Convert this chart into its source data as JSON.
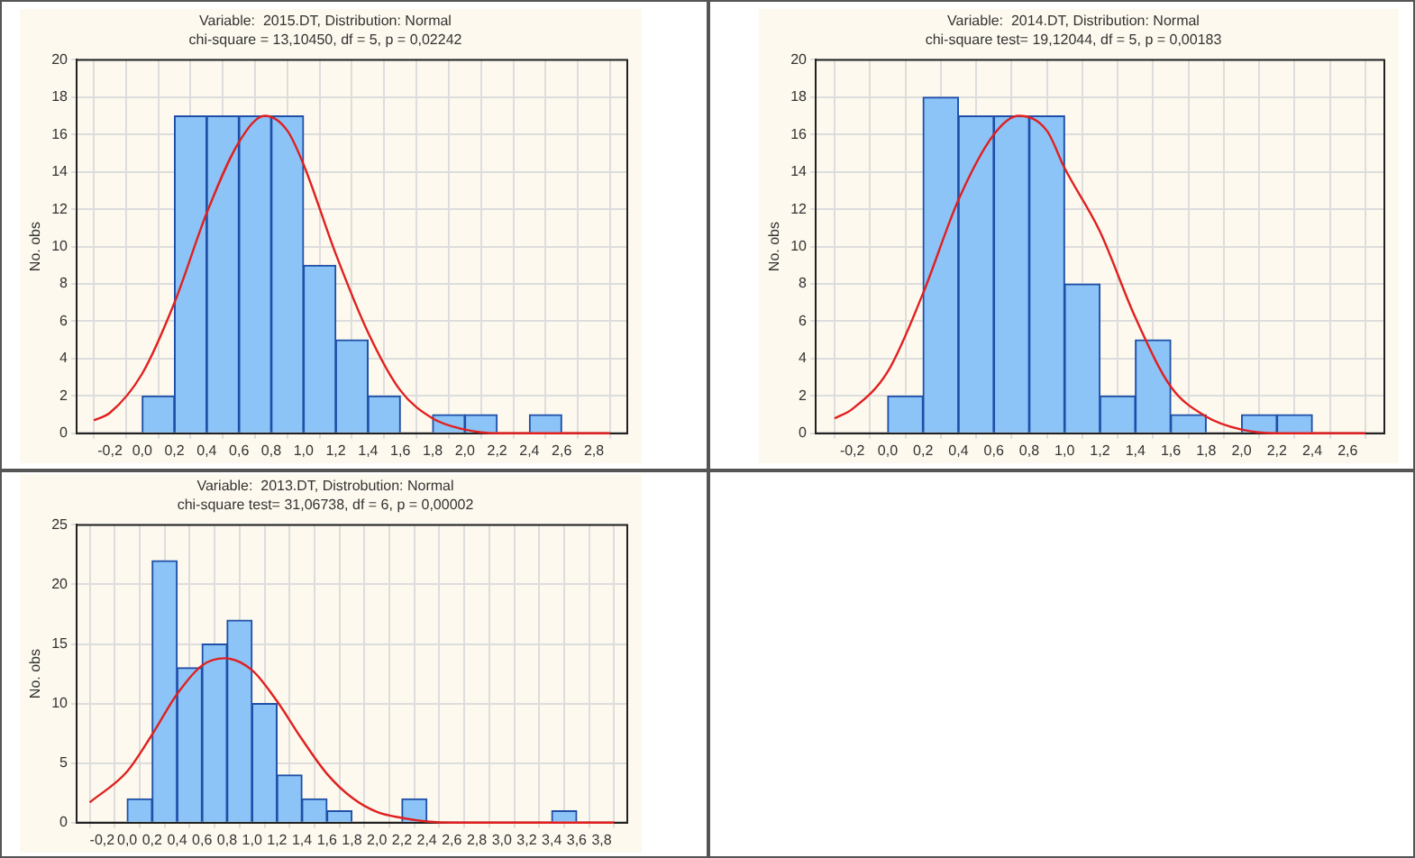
{
  "chart_data": [
    {
      "type": "histogram",
      "title": "Variable:  2015.DT, Distribution: Normal",
      "subtitle": "chi-square = 13,10450, df = 5, p = 0,02242",
      "ylabel": "No. obs",
      "bins": [
        0,
        0.2,
        0.4,
        0.6,
        0.8,
        1.0,
        1.2,
        1.4,
        1.6,
        1.8,
        2.0,
        2.2,
        2.4,
        2.6
      ],
      "values": [
        2,
        17,
        17,
        17,
        17,
        9,
        5,
        2,
        0,
        1,
        1,
        0,
        1
      ],
      "color": "#8cc4f7",
      "series": [
        {
          "type": "line",
          "color": "#e02020",
          "x": [
            -0.3,
            -0.2,
            0,
            0.2,
            0.4,
            0.6,
            0.76,
            0.9,
            1.0,
            1.2,
            1.4,
            1.6,
            1.8,
            2.0,
            2.2,
            2.4,
            2.9
          ],
          "values": [
            0.7,
            1.1,
            3.2,
            7,
            11.8,
            15.6,
            17,
            16.2,
            14.4,
            9.6,
            5.4,
            2.3,
            0.8,
            0.2,
            0,
            0,
            0
          ]
        }
      ],
      "xlim": [
        -0.3,
        2.9
      ],
      "xticks": [
        {
          "value": -0.2,
          "label": "-0,2"
        },
        {
          "value": 0,
          "label": "0,0"
        },
        {
          "value": 0.2,
          "label": "0,2"
        },
        {
          "value": 0.4,
          "label": "0,4"
        },
        {
          "value": 0.6,
          "label": "0,6"
        },
        {
          "value": 0.8,
          "label": "0,8"
        },
        {
          "value": 1.0,
          "label": "1,0"
        },
        {
          "value": 1.2,
          "label": "1,2"
        },
        {
          "value": 1.4,
          "label": "1,4"
        },
        {
          "value": 1.6,
          "label": "1,6"
        },
        {
          "value": 1.8,
          "label": "1,8"
        },
        {
          "value": 2.0,
          "label": "2,0"
        },
        {
          "value": 2.2,
          "label": "2,2"
        },
        {
          "value": 2.4,
          "label": "2,4"
        },
        {
          "value": 2.6,
          "label": "2,6"
        },
        {
          "value": 2.8,
          "label": "2,8"
        }
      ],
      "ylim": [
        0,
        20
      ],
      "yticks": [
        0,
        2,
        4,
        6,
        8,
        10,
        12,
        14,
        16,
        18,
        20
      ],
      "grid": true
    },
    {
      "type": "histogram",
      "title": "Variable:  2014.DT, Distribution: Normal",
      "subtitle": "chi-square test= 19,12044, df = 5, p = 0,00183",
      "ylabel": "No. obs",
      "bins": [
        0,
        0.2,
        0.4,
        0.6,
        0.8,
        1.0,
        1.2,
        1.4,
        1.6,
        1.8,
        2.0,
        2.2,
        2.4
      ],
      "values": [
        2,
        18,
        17,
        17,
        17,
        8,
        2,
        5,
        1,
        0,
        1,
        1
      ],
      "color": "#8cc4f7",
      "series": [
        {
          "type": "line",
          "color": "#e02020",
          "x": [
            -0.3,
            -0.2,
            0,
            0.2,
            0.4,
            0.6,
            0.74,
            0.9,
            1.0,
            1.2,
            1.4,
            1.6,
            1.8,
            2.0,
            2.2,
            2.4,
            2.7
          ],
          "values": [
            0.8,
            1.3,
            3.3,
            7.5,
            12.5,
            16,
            17,
            16.2,
            14.2,
            10.8,
            6.2,
            2.5,
            0.9,
            0.2,
            0,
            0,
            0
          ]
        }
      ],
      "xlim": [
        -0.3,
        2.7
      ],
      "xticks": [
        {
          "value": -0.2,
          "label": "-0,2"
        },
        {
          "value": 0,
          "label": "0,0"
        },
        {
          "value": 0.2,
          "label": "0,2"
        },
        {
          "value": 0.4,
          "label": "0,4"
        },
        {
          "value": 0.6,
          "label": "0,6"
        },
        {
          "value": 0.8,
          "label": "0,8"
        },
        {
          "value": 1.0,
          "label": "1,0"
        },
        {
          "value": 1.2,
          "label": "1,2"
        },
        {
          "value": 1.4,
          "label": "1,4"
        },
        {
          "value": 1.6,
          "label": "1,6"
        },
        {
          "value": 1.8,
          "label": "1,8"
        },
        {
          "value": 2.0,
          "label": "2,0"
        },
        {
          "value": 2.2,
          "label": "2,2"
        },
        {
          "value": 2.4,
          "label": "2,4"
        },
        {
          "value": 2.6,
          "label": "2,6"
        }
      ],
      "ylim": [
        0,
        20
      ],
      "yticks": [
        0,
        2,
        4,
        6,
        8,
        10,
        12,
        14,
        16,
        18,
        20
      ],
      "grid": true
    },
    {
      "type": "histogram",
      "title": "Variable:  2013.DT, Distrobution: Normal",
      "subtitle": "chi-square test= 31,06738, df = 6, p = 0,00002",
      "ylabel": "No. obs",
      "bins": [
        0,
        0.2,
        0.4,
        0.6,
        0.8,
        1.0,
        1.2,
        1.4,
        1.6,
        1.8,
        2.0,
        2.2,
        2.4,
        2.6,
        2.8,
        3.0,
        3.2,
        3.4,
        3.6
      ],
      "values": [
        2,
        22,
        13,
        15,
        17,
        10,
        4,
        2,
        1,
        0,
        0,
        2,
        0,
        0,
        0,
        0,
        0,
        1
      ],
      "color": "#8cc4f7",
      "series": [
        {
          "type": "line",
          "color": "#e02020",
          "x": [
            -0.3,
            0,
            0.2,
            0.4,
            0.6,
            0.78,
            1.0,
            1.2,
            1.4,
            1.6,
            1.8,
            2.0,
            2.2,
            2.4,
            2.6,
            3.9
          ],
          "values": [
            1.7,
            4.3,
            7.4,
            10.8,
            13.2,
            13.8,
            12.8,
            10.2,
            7,
            4.1,
            2.1,
            0.9,
            0.4,
            0.1,
            0,
            0
          ]
        }
      ],
      "xlim": [
        -0.3,
        3.9
      ],
      "xticks": [
        {
          "value": -0.2,
          "label": "-0,2"
        },
        {
          "value": 0,
          "label": "0,0"
        },
        {
          "value": 0.2,
          "label": "0,2"
        },
        {
          "value": 0.4,
          "label": "0,4"
        },
        {
          "value": 0.6,
          "label": "0,6"
        },
        {
          "value": 0.8,
          "label": "0,8"
        },
        {
          "value": 1.0,
          "label": "1,0"
        },
        {
          "value": 1.2,
          "label": "1,2"
        },
        {
          "value": 1.4,
          "label": "1,4"
        },
        {
          "value": 1.6,
          "label": "1,6"
        },
        {
          "value": 1.8,
          "label": "1,8"
        },
        {
          "value": 2.0,
          "label": "2,0"
        },
        {
          "value": 2.2,
          "label": "2,2"
        },
        {
          "value": 2.4,
          "label": "2,4"
        },
        {
          "value": 2.6,
          "label": "2,6"
        },
        {
          "value": 2.8,
          "label": "2,8"
        },
        {
          "value": 3.0,
          "label": "3,0"
        },
        {
          "value": 3.2,
          "label": "3,2"
        },
        {
          "value": 3.4,
          "label": "3,4"
        },
        {
          "value": 3.6,
          "label": "3,6"
        },
        {
          "value": 3.8,
          "label": "3,8"
        }
      ],
      "ylim": [
        0,
        25
      ],
      "yticks": [
        0,
        5,
        10,
        15,
        20,
        25
      ],
      "grid": true
    }
  ]
}
